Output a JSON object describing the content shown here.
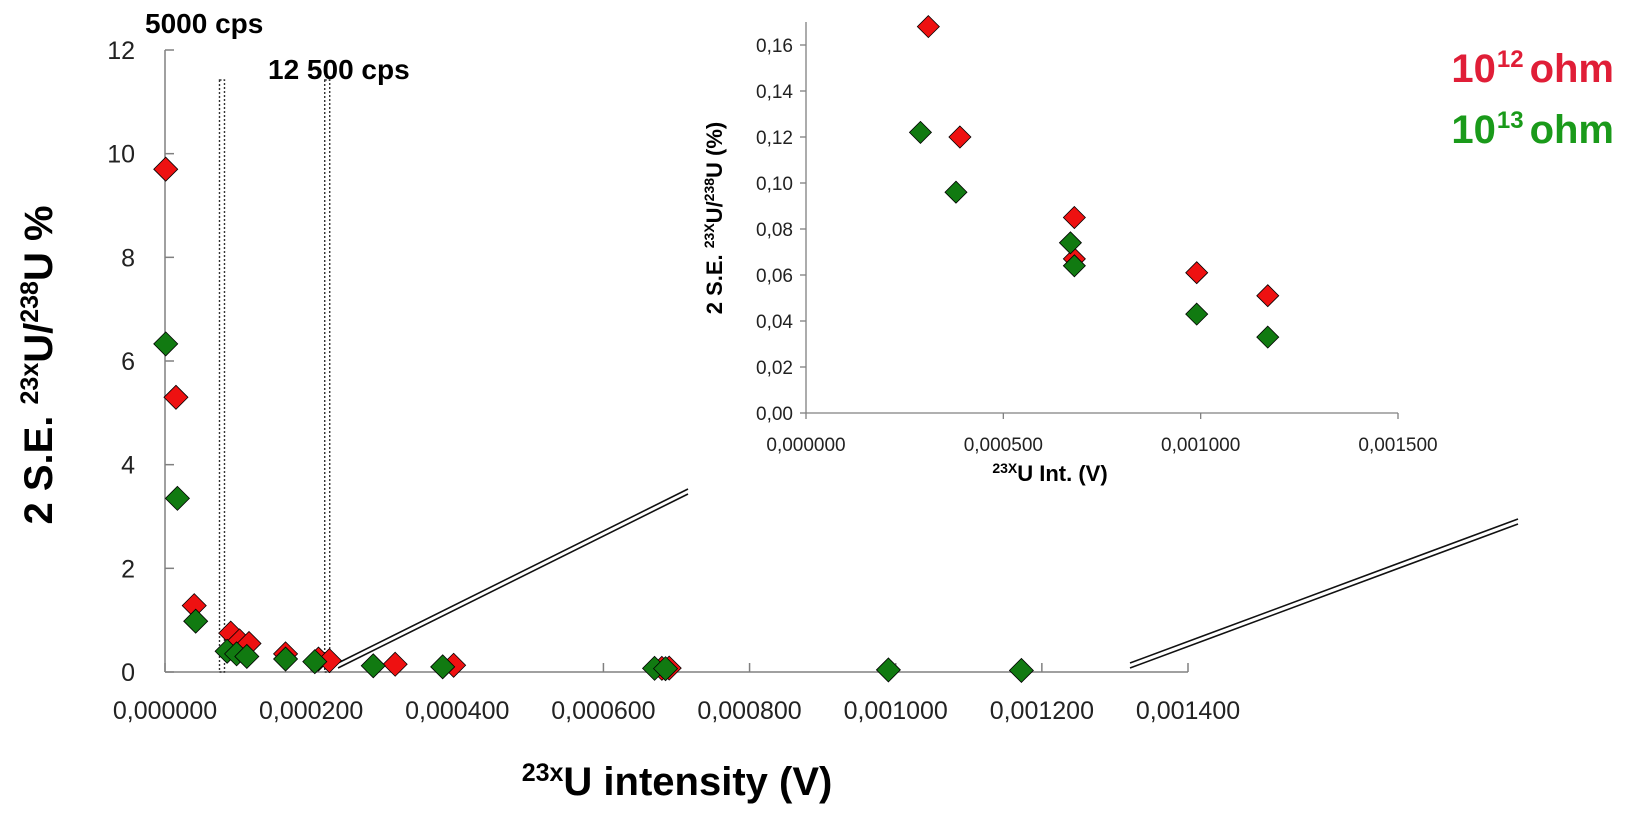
{
  "colors": {
    "red": "#ee1111",
    "green": "#117a11",
    "legend_red": "#e01e37",
    "legend_green": "#1a9a1a",
    "axis": "#808080"
  },
  "annotations": {
    "cps_5000": "5000 cps",
    "cps_12500": "12 500 cps"
  },
  "legend": {
    "red": {
      "base": "10",
      "exp": "12",
      "suffix": "ohm"
    },
    "green": {
      "base": "10",
      "exp": "13",
      "suffix": "ohm"
    }
  },
  "chart_data": [
    {
      "type": "scatter",
      "xlabel_sup": "23x",
      "xlabel_main": "U intensity (V)",
      "ylabel_pre": "2 S.E. ",
      "ylabel_sup1": "23x",
      "ylabel_mid": "U/",
      "ylabel_sup2": "238",
      "ylabel_post": "U %",
      "xlim": [
        0,
        0.0014
      ],
      "ylim": [
        0,
        12
      ],
      "xticks": [
        "0,000000",
        "0,000200",
        "0,000400",
        "0,000600",
        "0,000800",
        "0,001000",
        "0,001200",
        "0,001400"
      ],
      "yticks": [
        "0",
        "2",
        "4",
        "6",
        "8",
        "10",
        "12"
      ],
      "vlines": [
        7.8e-05,
        0.000222
      ],
      "series": [
        {
          "color": "red",
          "points": [
            [
              1e-06,
              9.7
            ],
            [
              1.5e-05,
              5.3
            ],
            [
              4e-05,
              1.28
            ],
            [
              9e-05,
              0.75
            ],
            [
              0.000102,
              0.6
            ],
            [
              0.000115,
              0.55
            ],
            [
              0.000165,
              0.35
            ],
            [
              0.00021,
              0.25
            ],
            [
              0.000225,
              0.22
            ],
            [
              0.000315,
              0.15
            ],
            [
              0.000395,
              0.13
            ],
            [
              0.00068,
              0.07
            ],
            [
              0.00069,
              0.075
            ]
          ]
        },
        {
          "color": "green",
          "points": [
            [
              1e-06,
              6.33
            ],
            [
              1.7e-05,
              3.35
            ],
            [
              4.2e-05,
              0.98
            ],
            [
              8.5e-05,
              0.4
            ],
            [
              9.8e-05,
              0.35
            ],
            [
              0.000112,
              0.3
            ],
            [
              0.000165,
              0.25
            ],
            [
              0.000205,
              0.2
            ],
            [
              0.000285,
              0.12
            ],
            [
              0.00038,
              0.1
            ],
            [
              0.00067,
              0.07
            ],
            [
              0.000685,
              0.065
            ],
            [
              0.00099,
              0.04
            ],
            [
              0.001172,
              0.03
            ]
          ]
        }
      ]
    },
    {
      "type": "scatter",
      "xlabel_sup": "23X",
      "xlabel_main": "U Int. (V)",
      "ylabel_pre": "2 S.E. ",
      "ylabel_sup1": "23X",
      "ylabel_mid": "U/",
      "ylabel_sup2": "238",
      "ylabel_post": "U (%)",
      "xlim": [
        0,
        0.0015
      ],
      "ylim": [
        0,
        0.17
      ],
      "xticks": [
        "0,000000",
        "0,000500",
        "0,001000",
        "0,001500"
      ],
      "yticks": [
        "0,00",
        "0,02",
        "0,04",
        "0,06",
        "0,08",
        "0,10",
        "0,12",
        "0,14",
        "0,16"
      ],
      "series": [
        {
          "color": "red",
          "points": [
            [
              0.00031,
              0.168
            ],
            [
              0.00039,
              0.12
            ],
            [
              0.00068,
              0.067
            ],
            [
              0.00068,
              0.085
            ],
            [
              0.00099,
              0.061
            ],
            [
              0.00117,
              0.051
            ]
          ]
        },
        {
          "color": "green",
          "points": [
            [
              0.00029,
              0.122
            ],
            [
              0.00038,
              0.096
            ],
            [
              0.00067,
              0.074
            ],
            [
              0.00068,
              0.064
            ],
            [
              0.00099,
              0.043
            ],
            [
              0.00117,
              0.033
            ]
          ]
        }
      ]
    }
  ]
}
